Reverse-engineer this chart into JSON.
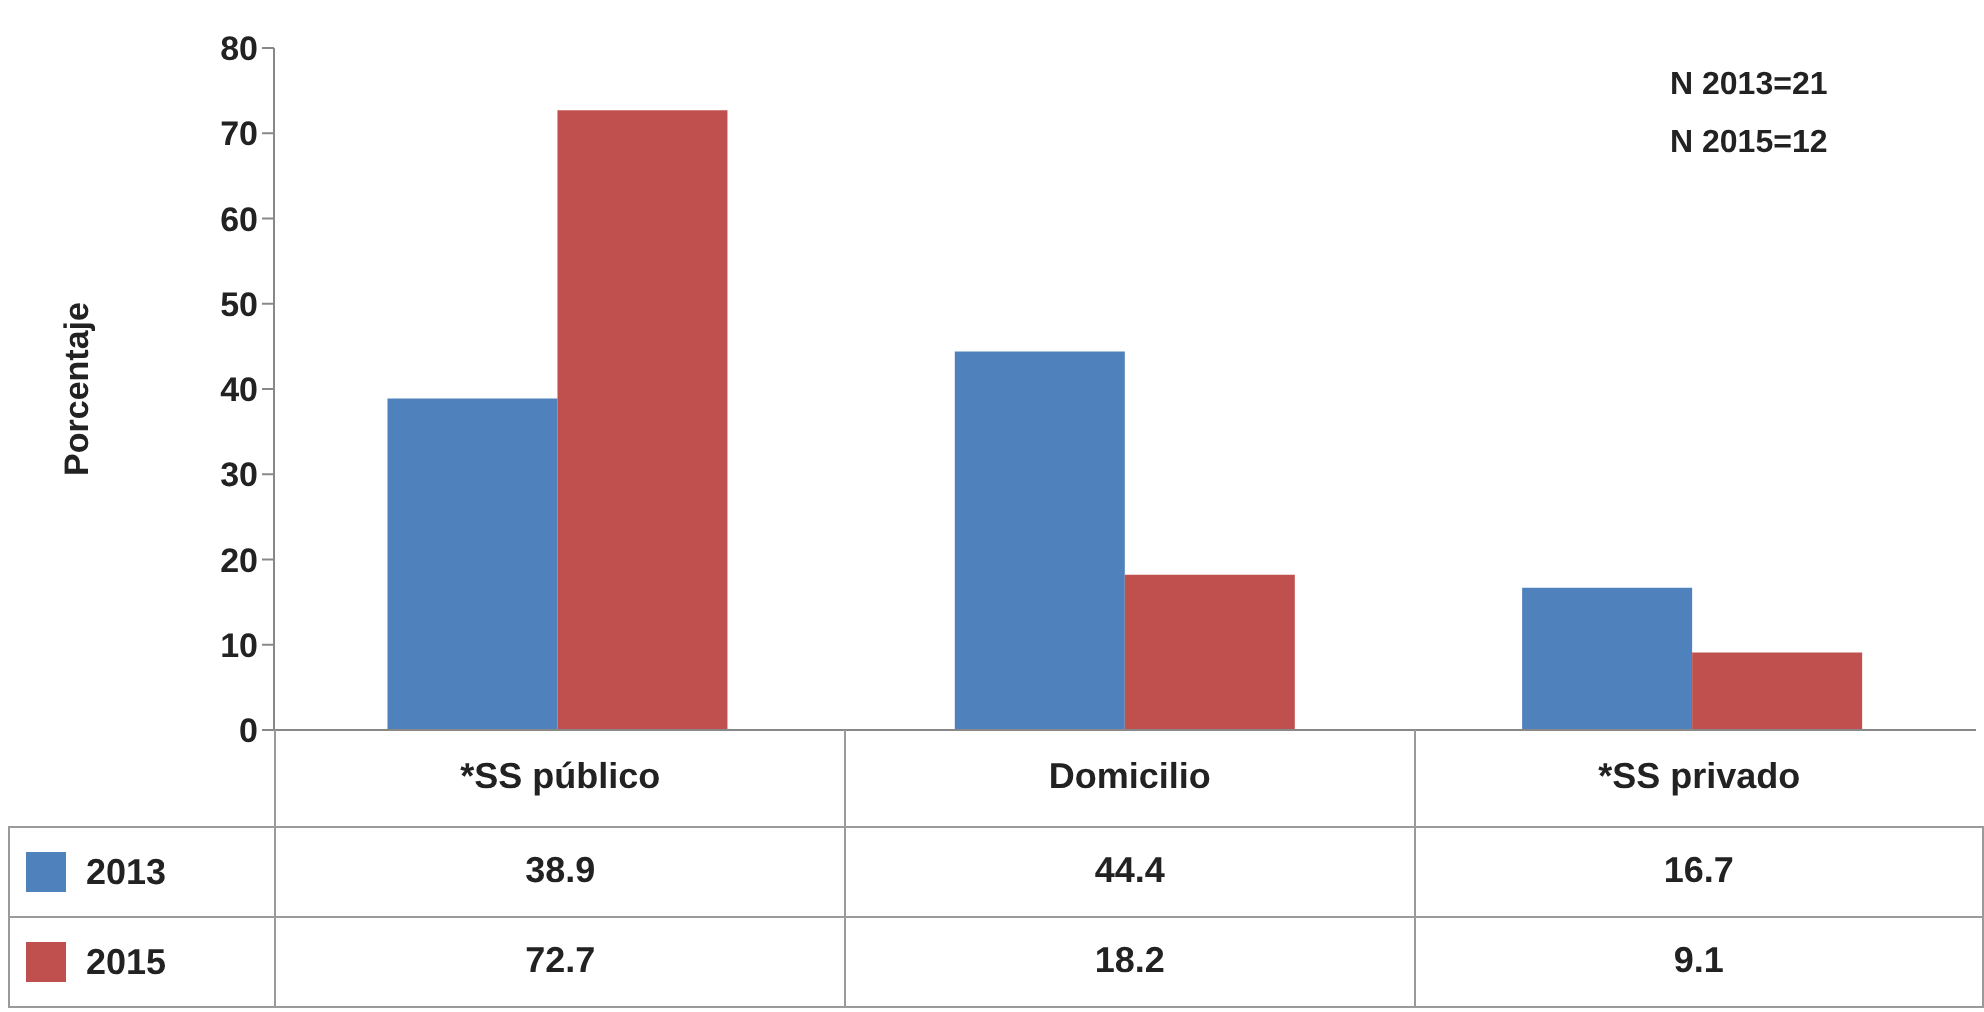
{
  "chart_data": {
    "type": "bar",
    "ylabel": "Porcentaje",
    "categories": [
      "*SS público",
      "Domicilio",
      "*SS privado"
    ],
    "series": [
      {
        "name": "2013",
        "color": "#4f81bd",
        "values": [
          38.9,
          44.4,
          16.7
        ]
      },
      {
        "name": "2015",
        "color": "#c0504d",
        "values": [
          72.7,
          18.2,
          9.1
        ]
      }
    ],
    "ylim": [
      0,
      80
    ],
    "yticks": [
      0,
      10,
      20,
      30,
      40,
      50,
      60,
      70,
      80
    ],
    "grid": false,
    "legend": "bottom",
    "data_labels": true,
    "annotations": [
      "N 2013=21",
      "N 2015=12"
    ]
  }
}
